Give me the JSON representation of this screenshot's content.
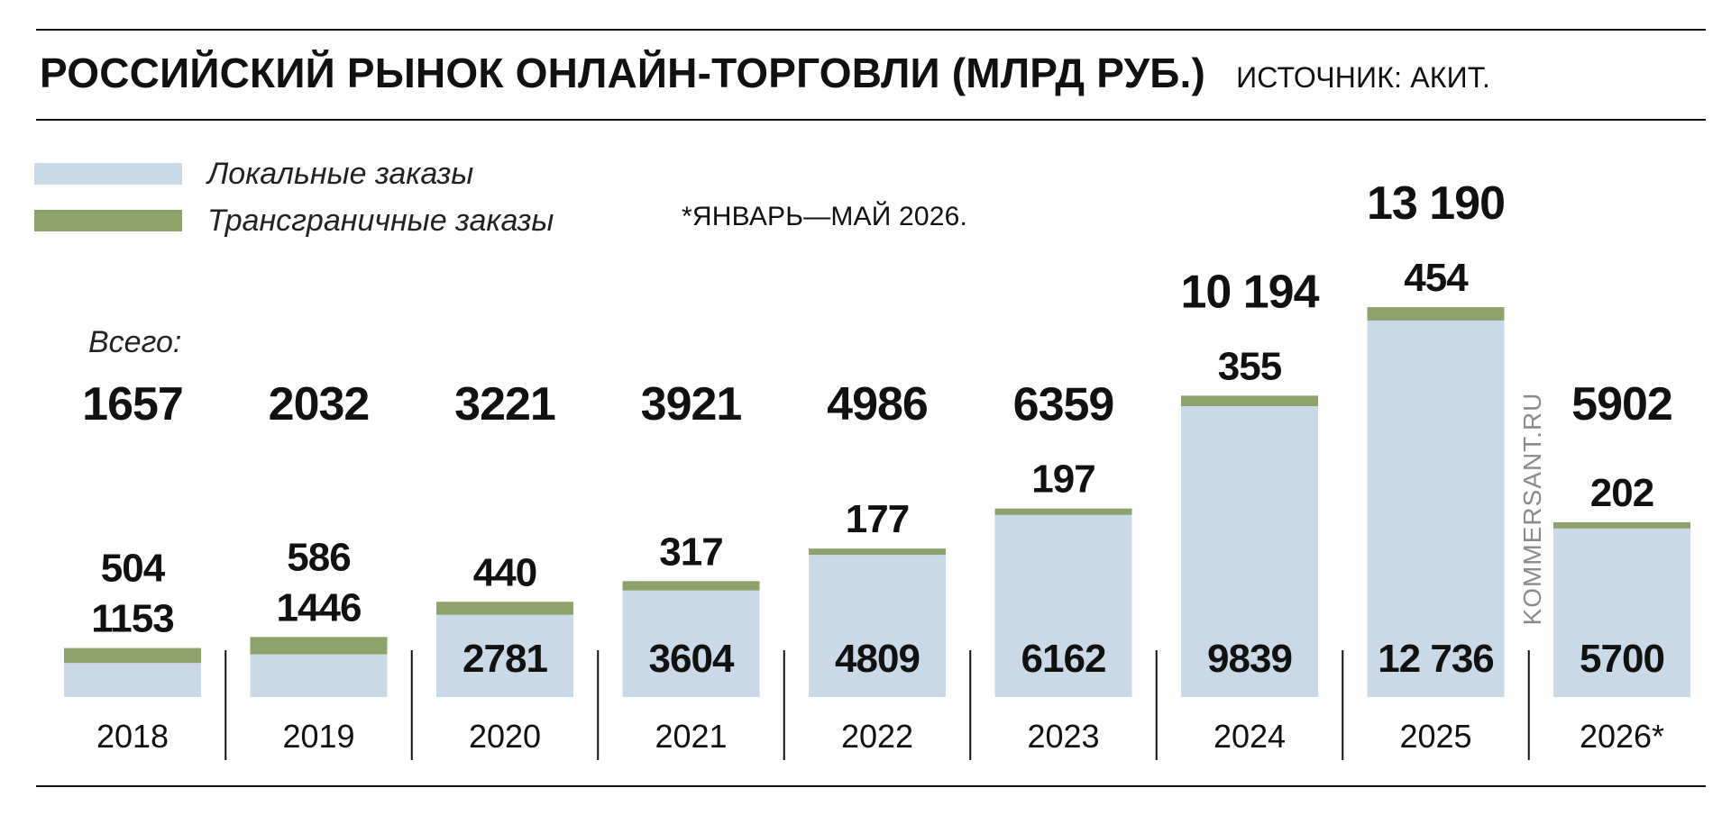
{
  "header": {
    "title": "РОССИЙСКИЙ РЫНОК ОНЛАЙН-ТОРГОВЛИ (МЛРД РУБ.)",
    "source": "ИСТОЧНИК: АКИТ."
  },
  "legend": {
    "items": [
      {
        "label": "Локальные заказы",
        "color": "#c9d9e8"
      },
      {
        "label": "Трансграничные заказы",
        "color": "#8ea36b"
      }
    ]
  },
  "note": "*ЯНВАРЬ—МАЙ 2026.",
  "totals_caption": "Всего:",
  "watermark": "KOMMERSANT.RU",
  "chart_data": {
    "type": "bar",
    "stacked": true,
    "title": "РОССИЙСКИЙ РЫНОК ОНЛАЙН-ТОРГОВЛИ (МЛРД РУБ.)",
    "categories": [
      "2018",
      "2019",
      "2020",
      "2021",
      "2022",
      "2023",
      "2024",
      "2025",
      "2026*"
    ],
    "series": [
      {
        "name": "Локальные заказы",
        "color": "#c9d9e8",
        "values": [
          1153,
          1446,
          2781,
          3604,
          4809,
          6162,
          9839,
          12736,
          5700
        ]
      },
      {
        "name": "Трансграничные заказы",
        "color": "#8ea36b",
        "values": [
          504,
          586,
          440,
          317,
          177,
          197,
          355,
          454,
          202
        ]
      }
    ],
    "totals": [
      "1657",
      "2032",
      "3221",
      "3921",
      "4986",
      "6359",
      "10 194",
      "13 190",
      "5902"
    ],
    "local_labels": [
      "1153",
      "1446",
      "2781",
      "3604",
      "4809",
      "6162",
      "9839",
      "12 736",
      "5700"
    ],
    "cross_labels": [
      "504",
      "586",
      "440",
      "317",
      "177",
      "197",
      "355",
      "454",
      "202"
    ],
    "ylim": [
      0,
      13190
    ],
    "grid": false,
    "legend_position": "top-left"
  }
}
